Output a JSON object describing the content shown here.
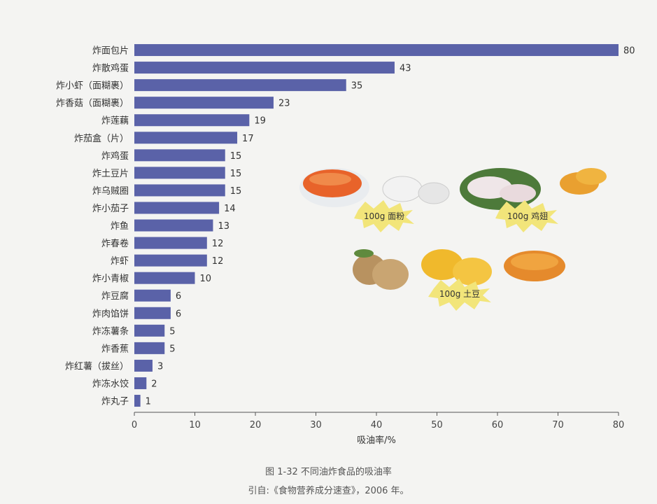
{
  "chart_data": {
    "type": "bar",
    "orientation": "horizontal",
    "categories": [
      "炸面包片",
      "炸散鸡蛋",
      "炸小虾（面糊裹）",
      "炸香菇（面糊裹）",
      "炸莲藕",
      "炸茄盒（片）",
      "炸鸡蛋",
      "炸土豆片",
      "炸乌贼圈",
      "炸小茄子",
      "炸鱼",
      "炸春卷",
      "炸虾",
      "炸小青椒",
      "炸豆腐",
      "炸肉馅饼",
      "炸冻薯条",
      "炸香蕉",
      "炸红薯（拔丝）",
      "炸冻水饺",
      "炸丸子"
    ],
    "values": [
      80,
      43,
      35,
      23,
      19,
      17,
      15,
      15,
      15,
      14,
      13,
      12,
      12,
      10,
      6,
      6,
      5,
      5,
      3,
      2,
      1
    ],
    "xlabel": "吸油率/%",
    "ylabel": "",
    "xlim": [
      0,
      80
    ],
    "xticks": [
      0,
      10,
      20,
      30,
      40,
      50,
      60,
      70,
      80
    ],
    "bar_color": "#5a62a8",
    "grid": false
  },
  "illustrations": {
    "labels": [
      "100g 面粉",
      "100g 鸡翅",
      "100g 土豆"
    ]
  },
  "caption": {
    "figure": "图 1-32   不同油炸食品的吸油率",
    "source": "引自:《食物营养成分速查》，2006 年。"
  }
}
